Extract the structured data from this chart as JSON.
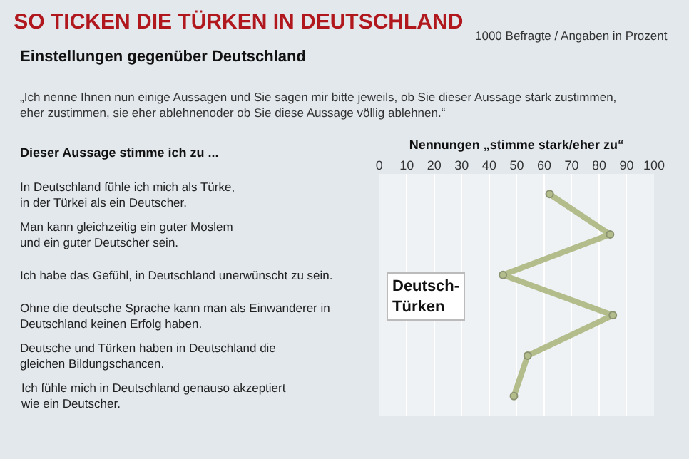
{
  "chart_data": {
    "type": "line",
    "orientation": "horizontal",
    "title": "SO TICKEN DIE TÜRKEN IN DEUTSCHLAND",
    "subtitle": "Einstellungen gegenüber Deutschland",
    "annotations": [
      "1000 Befragte / Angaben in Prozent",
      "„Ich nenne Ihnen nun einige Aussagen und Sie sagen mir bitte jeweils, ob Sie dieser Aussage stark zustimmen,\neher zustimmen, sie eher ablehnenoder ob Sie diese Aussage völlig ablehnen.“"
    ],
    "xlabel": "Nennungen „stimme stark/eher zu“",
    "ylabel": "Dieser Aussage stimme ich zu ...",
    "categories": [
      "In Deutschland fühle ich mich als Türke,\nin der Türkei als ein Deutscher.",
      "Man kann gleichzeitig ein guter Moslem\nund ein guter Deutscher sein.",
      "Ich habe das Gefühl, in Deutschland unerwünscht zu sein.",
      "Ohne die deutsche Sprache kann man als Einwanderer in\nDeutschland keinen Erfolg haben.",
      "Deutsche und Türken haben in Deutschland die\ngleichen Bildungschancen.",
      "Ich fühle mich in Deutschland genauso akzeptiert\nwie ein Deutscher."
    ],
    "series": [
      {
        "name": "Deutsch-Türken",
        "color": "#b3bd8c",
        "values": [
          62,
          84,
          45,
          85,
          54,
          49
        ]
      }
    ],
    "xlim": [
      0,
      100
    ],
    "xticks": [
      0,
      10,
      20,
      30,
      40,
      50,
      60,
      70,
      80,
      90,
      100
    ],
    "grid": "x",
    "marker": "circle"
  }
}
